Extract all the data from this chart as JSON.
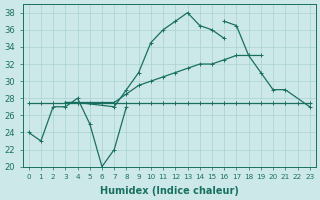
{
  "xlabel": "Humidex (Indice chaleur)",
  "background_color": "#cce8e8",
  "grid_color": "#aad0d0",
  "line_color": "#1a7060",
  "xlim": [
    -0.5,
    23.5
  ],
  "ylim": [
    20,
    39
  ],
  "yticks": [
    20,
    22,
    24,
    26,
    28,
    30,
    32,
    34,
    36,
    38
  ],
  "xtick_labels": [
    "0",
    "1",
    "2",
    "3",
    "4",
    "5",
    "6",
    "7",
    "8",
    "9",
    "10",
    "11",
    "12",
    "13",
    "14",
    "15",
    "16",
    "17",
    "18",
    "19",
    "20",
    "21",
    "22",
    "23"
  ],
  "series": [
    {
      "x": [
        0,
        1,
        2,
        3,
        4,
        5,
        6,
        7,
        8
      ],
      "y": [
        24,
        23,
        27,
        27,
        28,
        25,
        20,
        22,
        27
      ]
    },
    {
      "x": [
        3,
        4,
        7,
        8,
        9,
        10,
        11,
        12,
        13,
        14,
        15,
        16
      ],
      "y": [
        27.5,
        27.5,
        27,
        29,
        31,
        34.5,
        36,
        37,
        38,
        36.5,
        36,
        35
      ]
    },
    {
      "x": [
        3,
        4,
        7,
        8,
        9,
        10,
        11,
        12,
        13,
        14,
        15,
        16,
        17,
        18,
        19
      ],
      "y": [
        27.5,
        27.5,
        27.5,
        28.5,
        29.5,
        30,
        30.5,
        31,
        31.5,
        32,
        32,
        32.5,
        33,
        33,
        33
      ]
    },
    {
      "x": [
        0,
        1,
        2,
        3,
        4,
        5,
        6,
        7,
        8,
        9,
        10,
        11,
        12,
        13,
        14,
        15,
        16,
        17,
        18,
        19,
        20,
        21,
        22,
        23
      ],
      "y": [
        27.5,
        27.5,
        27.5,
        27.5,
        27.5,
        27.5,
        27.5,
        27.5,
        27.5,
        27.5,
        27.5,
        27.5,
        27.5,
        27.5,
        27.5,
        27.5,
        27.5,
        27.5,
        27.5,
        27.5,
        27.5,
        27.5,
        27.5,
        27.5
      ]
    },
    {
      "x": [
        16,
        17,
        18,
        19,
        20,
        21,
        23
      ],
      "y": [
        37,
        36.5,
        33,
        31,
        29,
        29,
        27
      ]
    }
  ]
}
